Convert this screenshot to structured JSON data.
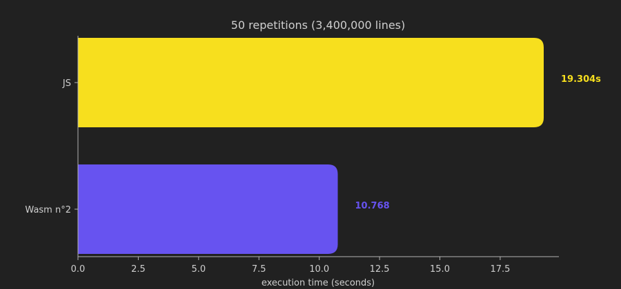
{
  "colors": {
    "background": "#212121",
    "axis": "#b4b4b4",
    "text": "#cfcfcf",
    "js": "#f7df1e",
    "wasm": "#6753f0"
  },
  "chart_data": {
    "type": "bar",
    "orientation": "horizontal",
    "title": "50 repetitions (3,400,000 lines)",
    "xlabel": "execution time (seconds)",
    "ylabel": "",
    "xlim": [
      0,
      19.304
    ],
    "xticks": [
      0,
      2.5,
      5,
      7.5,
      10,
      12.5,
      15,
      17.5
    ],
    "xtick_labels": [
      "0.0",
      "2.5",
      "5.0",
      "7.5",
      "10.0",
      "12.5",
      "15.0",
      "17.5"
    ],
    "grid": false,
    "categories": [
      "JS",
      "Wasm n°2"
    ],
    "values": [
      19.304,
      10.768
    ],
    "value_labels": [
      "19.304s",
      "10.768"
    ],
    "bar_colors": [
      "#f7df1e",
      "#6753f0"
    ]
  }
}
